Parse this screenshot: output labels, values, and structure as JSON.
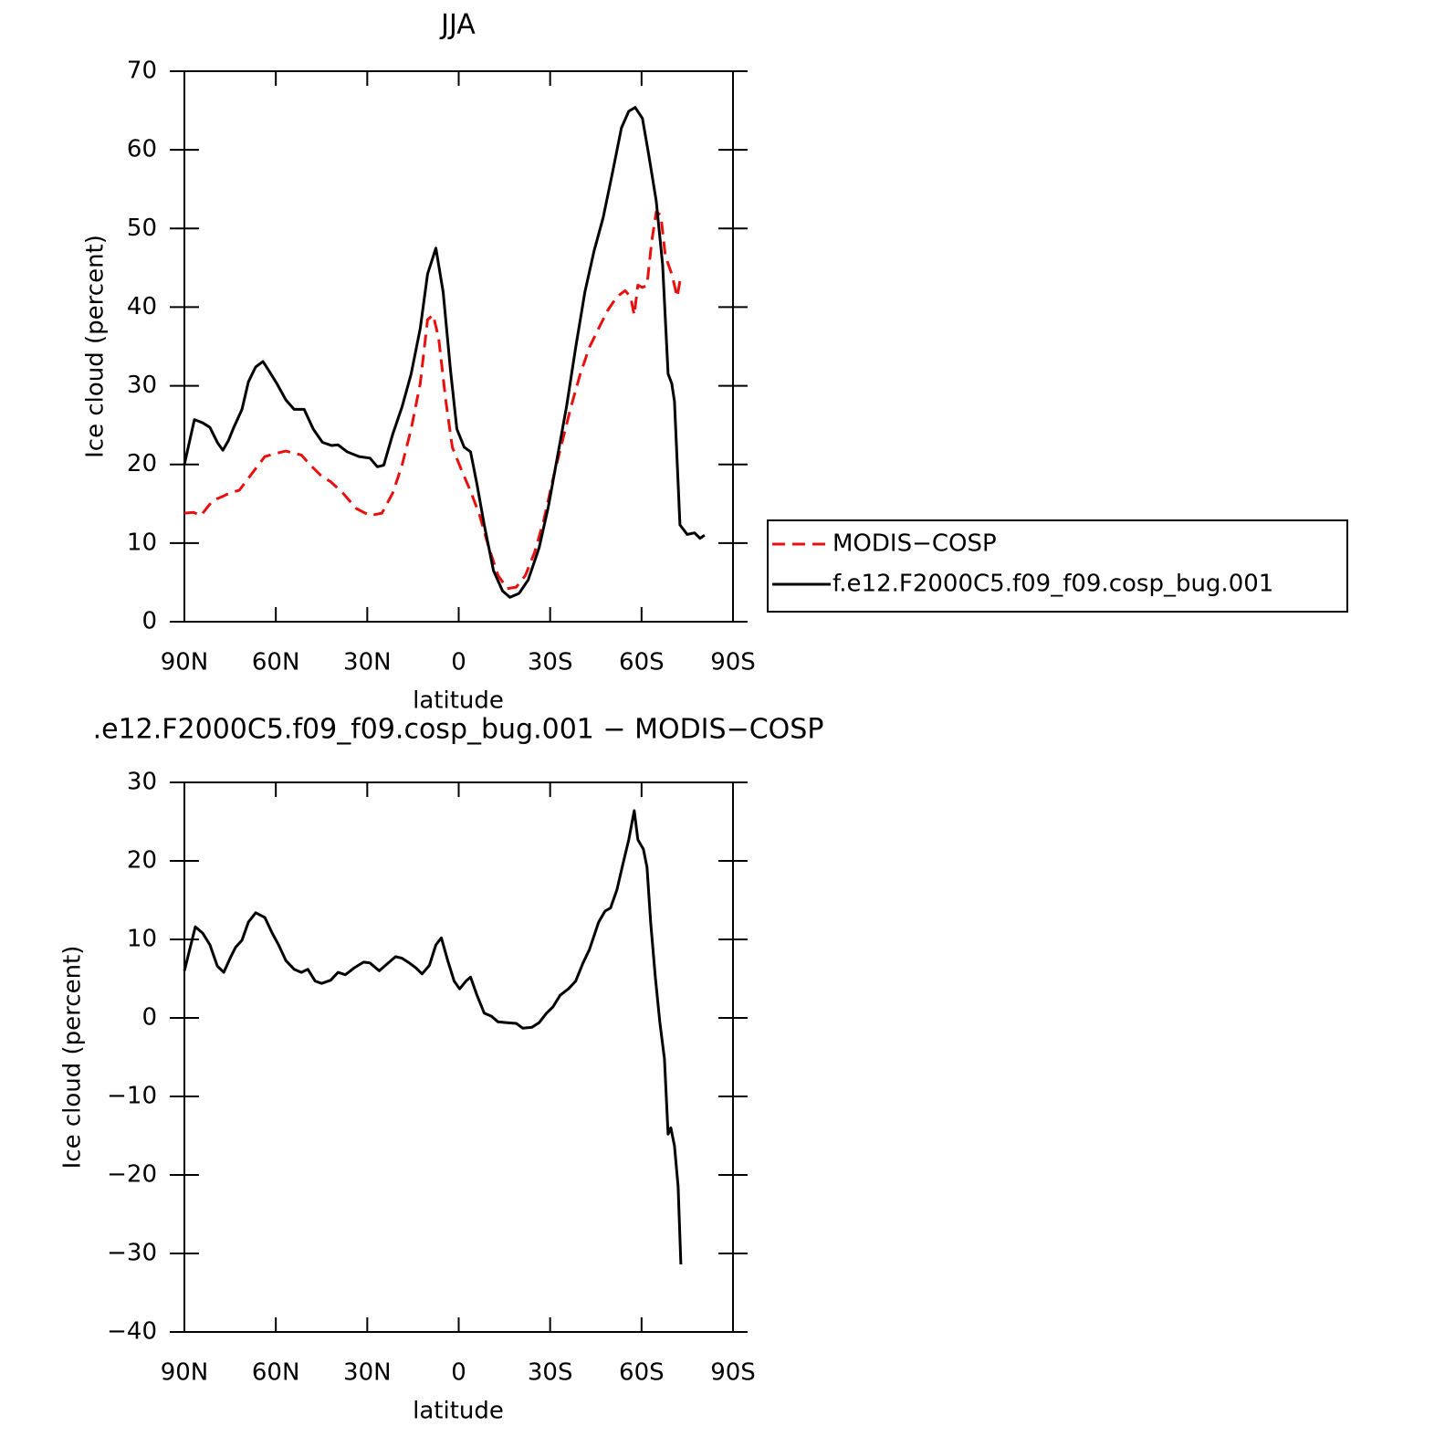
{
  "chart_data": [
    {
      "type": "line",
      "title": "JJA",
      "xlabel": "latitude",
      "ylabel": "Ice cloud (percent)",
      "xlim": [
        90,
        -90
      ],
      "ylim": [
        0,
        70
      ],
      "xticks": [
        {
          "value": 90,
          "label": "90N"
        },
        {
          "value": 60,
          "label": "60N"
        },
        {
          "value": 30,
          "label": "30N"
        },
        0,
        {
          "value": -30,
          "label": "30S"
        },
        {
          "value": -60,
          "label": "60S"
        },
        {
          "value": -90,
          "label": "90S"
        }
      ],
      "yticks": [
        0,
        10,
        20,
        30,
        40,
        50,
        60,
        70
      ],
      "legend": "right",
      "series": [
        {
          "name": "MODIS−COSP",
          "color": "#e8100e",
          "line_style": "dashed",
          "x": [
            90,
            87,
            84.6,
            80.7,
            77.1,
            75,
            72,
            68.1,
            63.6,
            60,
            56.7,
            51.6,
            48.6,
            45,
            42,
            38.1,
            33.6,
            29.1,
            25.2,
            21.6,
            18.6,
            15.6,
            12.6,
            10.2,
            8.4,
            6.6,
            4.2,
            2.1,
            -0.9,
            -3.9,
            -6.9,
            -9.9,
            -12.9,
            -15.9,
            -18.9,
            -21.9,
            -24.9,
            -27.9,
            -30.9,
            -33.9,
            -36.9,
            -39.9,
            -42.9,
            -45.9,
            -48.9,
            -51.9,
            -54.6,
            -56.4,
            -57.6,
            -58.8,
            -60.3,
            -61.8,
            -63.3,
            -64.8,
            -66.3,
            -67.8,
            -69.9,
            -71.7,
            -72.9
          ],
          "values": [
            13.8,
            13.9,
            13.5,
            15.4,
            16,
            16.4,
            16.7,
            18.7,
            21,
            21.4,
            21.7,
            21.2,
            19.9,
            18.5,
            17.8,
            16.4,
            14.4,
            13.5,
            13.8,
            16.4,
            19.9,
            24.5,
            30.3,
            38.4,
            39,
            36.1,
            28,
            22.2,
            19.3,
            16.6,
            13.5,
            9.4,
            5.9,
            4.2,
            4.4,
            5.9,
            8.8,
            12.9,
            18.1,
            22.8,
            27.4,
            31.5,
            34.9,
            37.3,
            39.6,
            41.3,
            42.1,
            41.3,
            39,
            42.8,
            42.5,
            42.8,
            48.3,
            52.1,
            51.7,
            46.5,
            44.2,
            41.3,
            44
          ]
        },
        {
          "name": "f.e12.F2000C5.f09_f09.cosp_bug.001",
          "color": "#000000",
          "line_style": "solid",
          "x": [
            90,
            86.7,
            84,
            81.6,
            79.2,
            77.4,
            75.6,
            73.8,
            71.1,
            69,
            66.6,
            64.2,
            62.1,
            59.7,
            56.7,
            54,
            50.7,
            47.7,
            44.7,
            41.7,
            39.6,
            36.6,
            32.7,
            29.1,
            26.7,
            24.6,
            21.6,
            18.6,
            15.6,
            12.6,
            10.2,
            7.5,
            5.1,
            2.7,
            0.6,
            -1.8,
            -3.9,
            -6,
            -8.4,
            -11.4,
            -14.4,
            -16.8,
            -19.8,
            -22.8,
            -26.4,
            -29.4,
            -32.4,
            -35.4,
            -38.4,
            -41.4,
            -44.4,
            -47.4,
            -50.4,
            -53.4,
            -55.8,
            -57.9,
            -60.3,
            -62.4,
            -64.8,
            -66.9,
            -68.7,
            -69.9,
            -70.8,
            -72.6,
            -75,
            -77.4,
            -79.2,
            -80.7
          ],
          "values": [
            20,
            25.7,
            25.3,
            24.7,
            22.8,
            21.8,
            23,
            24.7,
            27,
            30.5,
            32.4,
            33.1,
            31.8,
            30.3,
            28.2,
            27,
            27,
            24.5,
            22.8,
            22.4,
            22.5,
            21.6,
            21,
            20.8,
            19.7,
            19.9,
            23.9,
            27.3,
            31.5,
            37.3,
            44.2,
            47.5,
            41.9,
            32,
            24.5,
            22.2,
            21.6,
            17.5,
            12.3,
            6.5,
            3.9,
            3.1,
            3.6,
            5.3,
            9.4,
            14.6,
            21,
            27.4,
            34.9,
            41.9,
            47.1,
            51.4,
            57,
            62.8,
            64.9,
            65.4,
            64,
            59.3,
            53.5,
            45.4,
            31.5,
            30.3,
            28,
            12.3,
            11.1,
            11.3,
            10.6,
            11
          ]
        }
      ]
    },
    {
      "type": "line",
      "title": ".e12.F2000C5.f09_f09.cosp_bug.001 − MODIS−COSP",
      "xlabel": "latitude",
      "ylabel": "Ice cloud (percent)",
      "xlim": [
        90,
        -90
      ],
      "ylim": [
        -40,
        30
      ],
      "xticks": [
        {
          "value": 90,
          "label": "90N"
        },
        {
          "value": 60,
          "label": "60N"
        },
        {
          "value": 30,
          "label": "30N"
        },
        0,
        {
          "value": -30,
          "label": "30S"
        },
        {
          "value": -60,
          "label": "60S"
        },
        {
          "value": -90,
          "label": "90S"
        }
      ],
      "yticks": [
        {
          "value": -40,
          "label": "−40"
        },
        {
          "value": -30,
          "label": "−30"
        },
        {
          "value": -20,
          "label": "−20"
        },
        {
          "value": -10,
          "label": "−10"
        },
        0,
        10,
        20,
        30
      ],
      "color": "#000000",
      "x": [
        90,
        86.4,
        84,
        81.6,
        79.2,
        77.1,
        75,
        73.2,
        71.1,
        69,
        66.6,
        63.6,
        61.2,
        59.1,
        56.7,
        54,
        51.6,
        49.5,
        47.1,
        45,
        42,
        39.6,
        37.2,
        34.2,
        31.2,
        29.1,
        26.1,
        23.1,
        20.7,
        18.6,
        16.2,
        14.1,
        12,
        9.6,
        7.5,
        5.7,
        3.6,
        1.5,
        -0.3,
        -2.4,
        -3.9,
        -6,
        -8.4,
        -10.8,
        -12.9,
        -15.9,
        -18.9,
        -21,
        -24,
        -26.4,
        -28.8,
        -30.9,
        -33.3,
        -36,
        -38.4,
        -40.8,
        -42.9,
        -45.9,
        -48,
        -49.8,
        -51.9,
        -54,
        -55.8,
        -57.6,
        -58.8,
        -60.6,
        -61.8,
        -63,
        -64.5,
        -66,
        -67.5,
        -68.7,
        -69.6,
        -70.8,
        -72,
        -72.9
      ],
      "values": [
        6,
        11.6,
        10.8,
        9.3,
        6.6,
        5.8,
        7.6,
        9,
        9.9,
        12.2,
        13.4,
        12.8,
        10.8,
        9.3,
        7.3,
        6.2,
        5.8,
        6.2,
        4.7,
        4.4,
        4.8,
        5.8,
        5.5,
        6.4,
        7.1,
        7,
        6,
        7,
        7.8,
        7.6,
        7,
        6.4,
        5.6,
        6.7,
        9.3,
        10.2,
        7.3,
        4.7,
        3.7,
        4.7,
        5.2,
        2.9,
        0.6,
        0.2,
        -0.5,
        -0.6,
        -0.7,
        -1.3,
        -1.2,
        -0.6,
        0.6,
        1.4,
        2.9,
        3.7,
        4.7,
        7,
        8.7,
        12.2,
        13.6,
        14,
        16.3,
        19.8,
        22.7,
        26.4,
        22.7,
        21.5,
        19.2,
        12.2,
        5.2,
        -0.6,
        -5.2,
        -14.8,
        -14,
        -16.3,
        -21.5,
        -31.4
      ]
    }
  ]
}
